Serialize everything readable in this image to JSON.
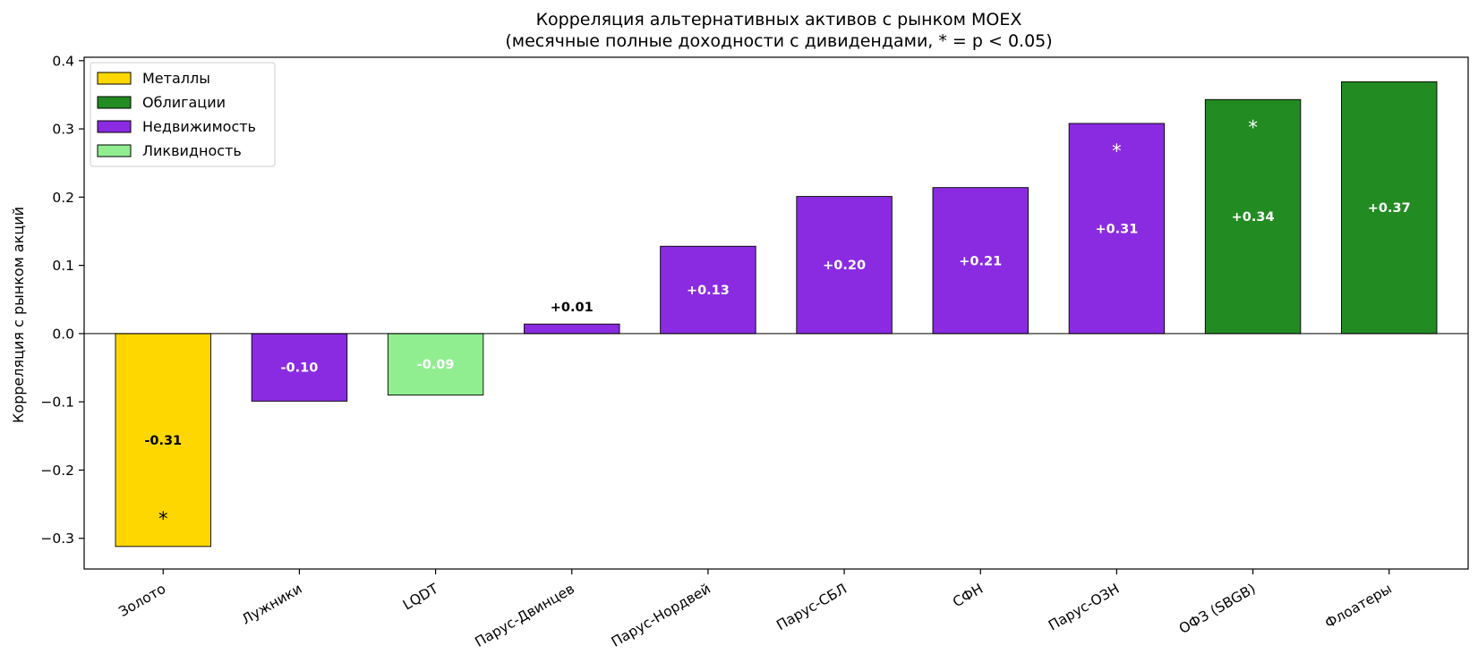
{
  "chart_data": {
    "type": "bar",
    "title": "Корреляция альтернативных активов с рынком MOEX",
    "subtitle": "(месячные полные доходности с дивидендами, * = p < 0.05)",
    "xlabel": "",
    "ylabel": "Корреляция с рынком акций",
    "ylim": [
      -0.345,
      0.405
    ],
    "yticks": [
      -0.3,
      -0.2,
      -0.1,
      0.0,
      0.1,
      0.2,
      0.3,
      0.4
    ],
    "ytick_labels": [
      "−0.3",
      "−0.2",
      "−0.1",
      "0.0",
      "0.1",
      "0.2",
      "0.3",
      "0.4"
    ],
    "grid": false,
    "legend_position": "top-left",
    "categories": [
      "Золото",
      "Лужники",
      "LQDT",
      "Парус-Двинцев",
      "Парус-Нордвей",
      "Парус-СБЛ",
      "СФН",
      "Парус-ОЗН",
      "ОФЗ (SBGB)",
      "Флоатеры"
    ],
    "values": [
      -0.312,
      -0.099,
      -0.09,
      0.014,
      0.128,
      0.201,
      0.214,
      0.308,
      0.343,
      0.369
    ],
    "value_labels": [
      "-0.31",
      "-0.10",
      "-0.09",
      "+0.01",
      "+0.13",
      "+0.20",
      "+0.21",
      "+0.31",
      "+0.34",
      "+0.37"
    ],
    "significant": [
      true,
      false,
      false,
      false,
      false,
      false,
      false,
      true,
      true,
      false
    ],
    "significance_marker": "*",
    "groups": [
      "Металлы",
      "Недвижимость",
      "Ликвидность",
      "Недвижимость",
      "Недвижимость",
      "Недвижимость",
      "Недвижимость",
      "Недвижимость",
      "Облигации",
      "Облигации"
    ],
    "legend": [
      {
        "name": "Металлы",
        "color": "#FFD700"
      },
      {
        "name": "Облигации",
        "color": "#228B22"
      },
      {
        "name": "Недвижимость",
        "color": "#8A2BE2"
      },
      {
        "name": "Ликвидность",
        "color": "#90EE90"
      }
    ]
  }
}
